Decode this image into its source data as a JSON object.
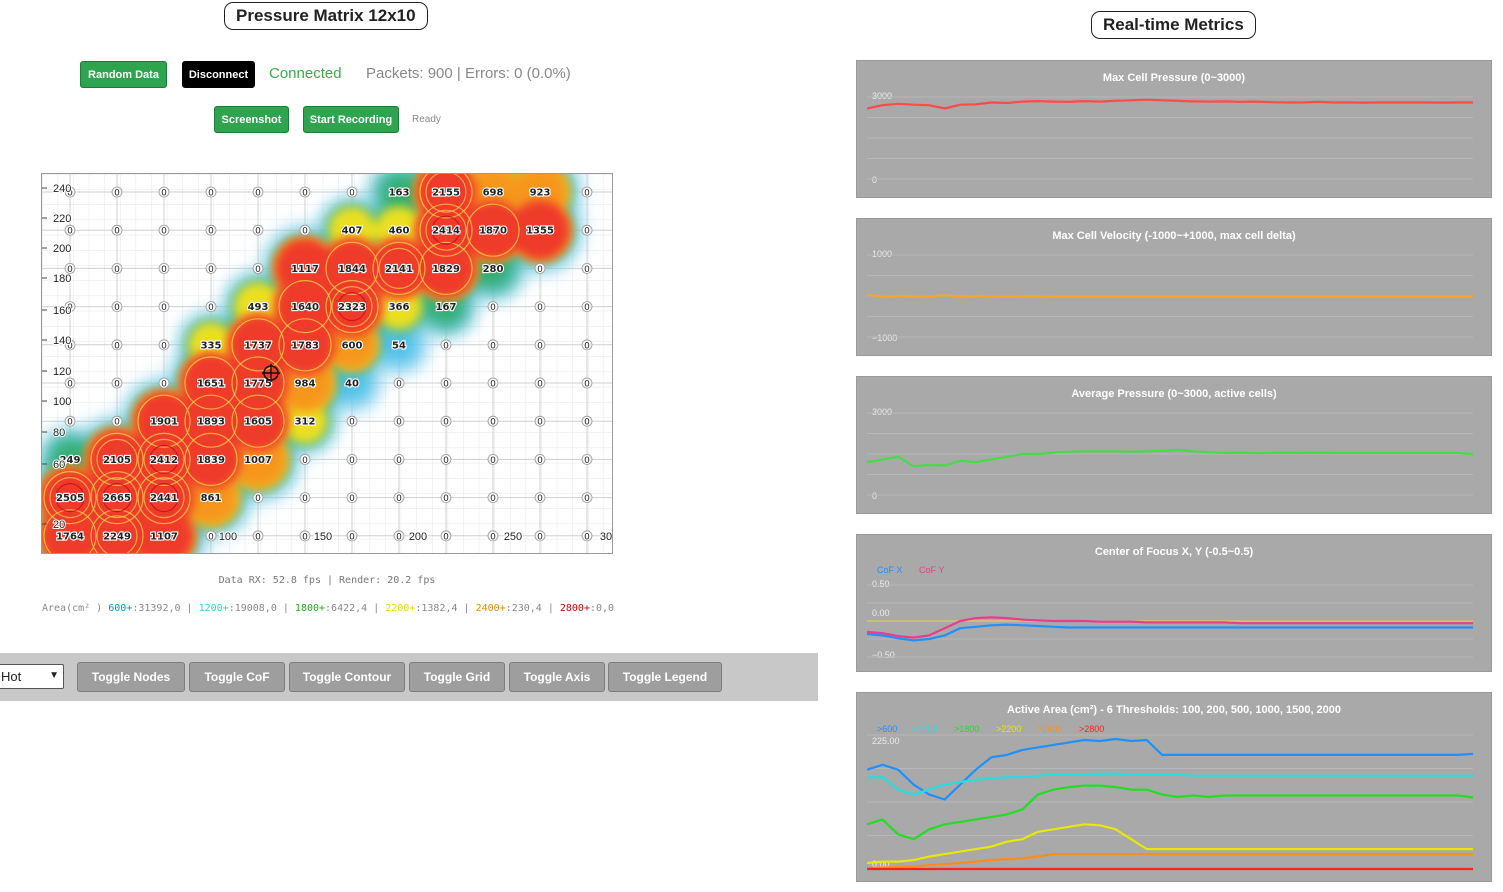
{
  "left": {
    "title": "Pressure Matrix 12x10",
    "buttons": {
      "random": "Random Data",
      "disconnect": "Disconnect",
      "screenshot": "Screenshot",
      "record": "Start Recording"
    },
    "connection": "Connected",
    "packets": "Packets: 900 | Errors: 0 (0.0%)",
    "record_status": "Ready",
    "fps": "Data RX: 52.8 fps | Render: 20.2 fps",
    "area": {
      "prefix": "Area(cm² )",
      "items": [
        {
          "label": "600+",
          "value": ":31392,0",
          "color": "#0099cc"
        },
        {
          "label": "1200+",
          "value": ":19008,0",
          "color": "#33ccee"
        },
        {
          "label": "1800+",
          "value": ":6422,4",
          "color": "#22aa22"
        },
        {
          "label": "2200+",
          "value": ":1382,4",
          "color": "#dddd00"
        },
        {
          "label": "2400+",
          "value": ":230,4",
          "color": "#ee8800"
        },
        {
          "label": "2800+",
          "value": ":0,0",
          "color": "#cc0000"
        }
      ]
    },
    "heatmap": {
      "y_ticks": [
        "240",
        "220",
        "200",
        "180",
        "160",
        "140",
        "120",
        "100",
        "80",
        "60",
        "20"
      ],
      "x_ticks": [
        "100",
        "150",
        "200",
        "250",
        "30"
      ],
      "cells": [
        [
          0,
          0,
          0,
          0,
          0,
          0,
          0,
          163,
          2155,
          698,
          923,
          0
        ],
        [
          0,
          0,
          0,
          0,
          0,
          0,
          407,
          460,
          2414,
          1870,
          1355,
          0
        ],
        [
          0,
          0,
          0,
          0,
          0,
          1117,
          1844,
          2141,
          1829,
          280,
          0,
          0
        ],
        [
          0,
          0,
          0,
          0,
          493,
          1640,
          2323,
          366,
          167,
          0,
          0,
          0
        ],
        [
          0,
          0,
          0,
          335,
          1737,
          1783,
          600,
          54,
          0,
          0,
          0,
          0
        ],
        [
          0,
          0,
          0,
          1651,
          1775,
          984,
          40,
          0,
          0,
          0,
          0,
          0
        ],
        [
          0,
          0,
          1901,
          1893,
          1605,
          312,
          0,
          0,
          0,
          0,
          0,
          0
        ],
        [
          249,
          2105,
          2412,
          1839,
          1007,
          0,
          0,
          0,
          0,
          0,
          0,
          0
        ],
        [
          2505,
          2665,
          2441,
          861,
          0,
          0,
          0,
          0,
          0,
          0,
          0,
          0
        ],
        [
          1764,
          2249,
          1107,
          0,
          0,
          0,
          0,
          0,
          0,
          0,
          0,
          0
        ]
      ]
    },
    "toolbar": {
      "colormap": "Hot",
      "buttons": [
        "Toggle Nodes",
        "Toggle CoF",
        "Toggle Contour",
        "Toggle Grid",
        "Toggle Axis",
        "Toggle Legend"
      ]
    }
  },
  "right": {
    "title": "Real-time Metrics",
    "panels": [
      {
        "title": "Max Cell Pressure (0~3000)",
        "top_label": "3000",
        "bottom_label": "0",
        "mid_label": ""
      },
      {
        "title": "Max Cell Velocity (-1000~+1000, max cell delta)",
        "top_label": "1000",
        "bottom_label": "−1000",
        "mid_label": ""
      },
      {
        "title": "Average Pressure (0~3000, active cells)",
        "top_label": "3000",
        "bottom_label": "0",
        "mid_label": ""
      },
      {
        "title": "Center of Focus X, Y (-0.5~0.5)",
        "top_label": "0.50",
        "bottom_label": "−0.50",
        "mid_label": "0.00",
        "legend": [
          "CoF X",
          "CoF Y"
        ]
      },
      {
        "title": "Active Area (cm²) - 6 Thresholds: 100, 200, 500, 1000, 1500, 2000",
        "top_label": "225.00",
        "bottom_label": "0.00",
        "mid_label": "",
        "legend": [
          ">600",
          ">1200",
          ">1800",
          ">2200",
          ">2400",
          ">2800"
        ]
      }
    ]
  },
  "chart_data": [
    {
      "type": "line",
      "title": "Max Cell Pressure (0~3000)",
      "ylim": [
        0,
        3000
      ],
      "series": [
        {
          "color": "#ff4a4a",
          "values": [
            2580,
            2700,
            2750,
            2720,
            2700,
            2580,
            2720,
            2730,
            2800,
            2780,
            2830,
            2850,
            2830,
            2820,
            2850,
            2830,
            2860,
            2880,
            2900,
            2880,
            2860,
            2840,
            2830,
            2840,
            2820,
            2830,
            2810,
            2800,
            2800,
            2820,
            2800,
            2800,
            2790,
            2800,
            2800,
            2800,
            2800,
            2790,
            2800,
            2800
          ]
        }
      ]
    },
    {
      "type": "line",
      "title": "Max Cell Velocity (-1000~+1000, max cell delta)",
      "ylim": [
        -1000,
        1000
      ],
      "series": [
        {
          "color": "#f5a623",
          "values": [
            30,
            -20,
            0,
            -10,
            -20,
            20,
            -30,
            0,
            -20,
            -10,
            -20,
            -20,
            -10,
            -10,
            -10,
            -10,
            -10,
            -10,
            -10,
            -10,
            -10,
            -10,
            -10,
            -10,
            -10,
            -10,
            -10,
            -10,
            -10,
            -10,
            -10,
            -10,
            -10,
            -10,
            -10,
            -10,
            -10,
            -10,
            -10,
            -10
          ]
        }
      ]
    },
    {
      "type": "line",
      "title": "Average Pressure (0~3000, active cells)",
      "ylim": [
        0,
        3000
      ],
      "series": [
        {
          "color": "#44dd44",
          "values": [
            1200,
            1300,
            1400,
            1050,
            1100,
            1080,
            1250,
            1200,
            1300,
            1400,
            1500,
            1500,
            1550,
            1580,
            1600,
            1600,
            1600,
            1580,
            1600,
            1620,
            1650,
            1600,
            1560,
            1540,
            1550,
            1530,
            1540,
            1550,
            1540,
            1550,
            1540,
            1540,
            1540,
            1540,
            1540,
            1540,
            1540,
            1540,
            1540,
            1500
          ]
        }
      ]
    },
    {
      "type": "line",
      "title": "Center of Focus X, Y (-0.5~0.5)",
      "ylim": [
        -0.5,
        0.5
      ],
      "series": [
        {
          "name": "CoF X",
          "color": "#1e90ff",
          "values": [
            -0.18,
            -0.2,
            -0.24,
            -0.27,
            -0.25,
            -0.2,
            -0.1,
            -0.08,
            -0.06,
            -0.05,
            -0.06,
            -0.07,
            -0.08,
            -0.09,
            -0.09,
            -0.09,
            -0.09,
            -0.09,
            -0.09,
            -0.09,
            -0.09,
            -0.09,
            -0.09,
            -0.09,
            -0.09,
            -0.09,
            -0.09,
            -0.09,
            -0.09,
            -0.09,
            -0.09,
            -0.09,
            -0.09,
            -0.09,
            -0.09,
            -0.09,
            -0.09,
            -0.09,
            -0.09,
            -0.09
          ]
        },
        {
          "name": "CoF Y",
          "color": "#e83e8c",
          "values": [
            -0.15,
            -0.17,
            -0.21,
            -0.23,
            -0.2,
            -0.1,
            0.0,
            0.04,
            0.05,
            0.04,
            0.02,
            0.01,
            0.0,
            0.0,
            0.0,
            -0.01,
            -0.01,
            -0.01,
            -0.02,
            -0.02,
            -0.02,
            -0.02,
            -0.02,
            -0.02,
            -0.03,
            -0.03,
            -0.03,
            -0.03,
            -0.03,
            -0.03,
            -0.03,
            -0.03,
            -0.03,
            -0.03,
            -0.03,
            -0.03,
            -0.03,
            -0.03,
            -0.03,
            -0.03
          ]
        }
      ]
    },
    {
      "type": "line",
      "title": "Active Area (cm²) - 6 Thresholds: 100, 200, 500, 1000, 1500, 2000",
      "ylim": [
        0,
        270
      ],
      "series": [
        {
          "name": ">600",
          "color": "#1e90ff",
          "values": [
            200,
            210,
            200,
            170,
            150,
            140,
            170,
            200,
            225,
            230,
            240,
            245,
            250,
            255,
            260,
            258,
            262,
            258,
            260,
            230,
            230,
            230,
            230,
            230,
            230,
            230,
            230,
            230,
            230,
            230,
            230,
            230,
            230,
            230,
            230,
            230,
            230,
            230,
            230,
            232
          ]
        },
        {
          "name": ">1200",
          "color": "#22e0e0",
          "values": [
            185,
            185,
            160,
            150,
            160,
            170,
            175,
            180,
            182,
            185,
            185,
            188,
            190,
            190,
            190,
            192,
            192,
            190,
            190,
            190,
            190,
            188,
            188,
            188,
            188,
            188,
            188,
            188,
            188,
            188,
            188,
            188,
            188,
            188,
            188,
            188,
            188,
            188,
            188,
            188
          ]
        },
        {
          "name": ">1800",
          "color": "#22dd22",
          "values": [
            90,
            100,
            70,
            60,
            80,
            90,
            95,
            100,
            105,
            110,
            120,
            150,
            160,
            165,
            168,
            168,
            165,
            160,
            160,
            150,
            145,
            148,
            145,
            148,
            148,
            148,
            148,
            148,
            148,
            148,
            148,
            148,
            148,
            148,
            148,
            148,
            148,
            148,
            148,
            144
          ]
        },
        {
          "name": ">2200",
          "color": "#e8e800",
          "values": [
            12,
            15,
            15,
            18,
            25,
            30,
            35,
            40,
            45,
            55,
            60,
            75,
            80,
            85,
            90,
            88,
            80,
            60,
            40,
            40,
            40,
            40,
            40,
            40,
            40,
            40,
            40,
            40,
            40,
            40,
            40,
            40,
            40,
            40,
            40,
            40,
            40,
            40,
            40,
            40
          ]
        },
        {
          "name": ">2400",
          "color": "#ff8c1a",
          "values": [
            2,
            3,
            4,
            5,
            8,
            10,
            12,
            15,
            18,
            20,
            22,
            25,
            30,
            30,
            30,
            30,
            30,
            30,
            30,
            30,
            30,
            30,
            30,
            30,
            30,
            30,
            30,
            30,
            30,
            30,
            30,
            30,
            30,
            30,
            30,
            30,
            30,
            30,
            30,
            30
          ]
        },
        {
          "name": ">2800",
          "color": "#ff2020",
          "values": [
            0,
            0,
            0,
            0,
            0,
            0,
            0,
            0,
            0,
            0,
            0,
            0,
            0,
            0,
            0,
            0,
            0,
            0,
            0,
            0,
            0,
            0,
            0,
            0,
            0,
            0,
            0,
            0,
            0,
            0,
            0,
            0,
            0,
            0,
            0,
            0,
            0,
            0,
            0,
            0
          ]
        }
      ]
    }
  ]
}
